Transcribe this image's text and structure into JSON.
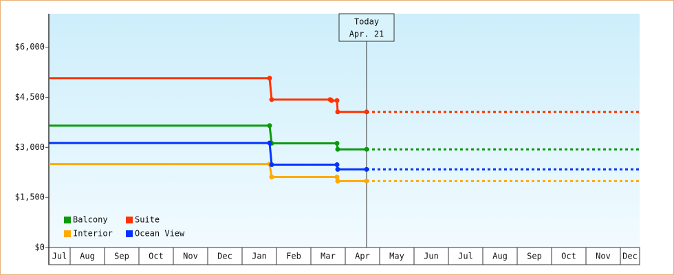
{
  "chart_data": {
    "type": "step-line",
    "x_categories": [
      "Jul",
      "Aug",
      "Sep",
      "Oct",
      "Nov",
      "Dec",
      "Jan",
      "Feb",
      "Mar",
      "Apr",
      "May",
      "Jun",
      "Jul",
      "Aug",
      "Sep",
      "Oct",
      "Nov",
      "Dec"
    ],
    "xlim": [
      0.38,
      17.56
    ],
    "xticks": [
      1,
      2,
      3,
      4,
      5,
      6,
      7,
      8,
      9,
      10,
      11,
      12,
      13,
      14,
      15,
      16,
      17
    ],
    "ylim": [
      0,
      7000
    ],
    "yticks": [
      {
        "value": 0,
        "label": "$0"
      },
      {
        "value": 1500,
        "label": "$1,500"
      },
      {
        "value": 3000,
        "label": "$3,000"
      },
      {
        "value": 4500,
        "label": "$4,500"
      },
      {
        "value": 6000,
        "label": "$6,000"
      }
    ],
    "grid": false,
    "legend": "lower left",
    "annotation": {
      "x": 9.62,
      "lines": [
        "Today",
        "Apr. 21"
      ]
    },
    "series": [
      {
        "name": "Balcony",
        "color": "#0a9a0a",
        "x": [
          0.38,
          6.8,
          6.86,
          8.76,
          8.78,
          9.62
        ],
        "values": [
          3650,
          3650,
          3120,
          3120,
          2940,
          2940
        ]
      },
      {
        "name": "Suite",
        "color": "#ff3300",
        "x": [
          0.38,
          6.8,
          6.86,
          8.56,
          8.6,
          8.76,
          8.78,
          9.62
        ],
        "values": [
          5070,
          5070,
          4430,
          4430,
          4400,
          4400,
          4060,
          4060
        ]
      },
      {
        "name": "Interior",
        "color": "#ffaa00",
        "x": [
          0.38,
          6.8,
          6.86,
          8.76,
          8.78,
          9.62
        ],
        "values": [
          2500,
          2500,
          2110,
          2110,
          1990,
          1990
        ]
      },
      {
        "name": "Ocean View",
        "color": "#0033ff",
        "x": [
          0.38,
          6.8,
          6.86,
          8.76,
          8.78,
          9.62
        ],
        "values": [
          3130,
          3130,
          2480,
          2480,
          2340,
          2340
        ]
      }
    ]
  }
}
